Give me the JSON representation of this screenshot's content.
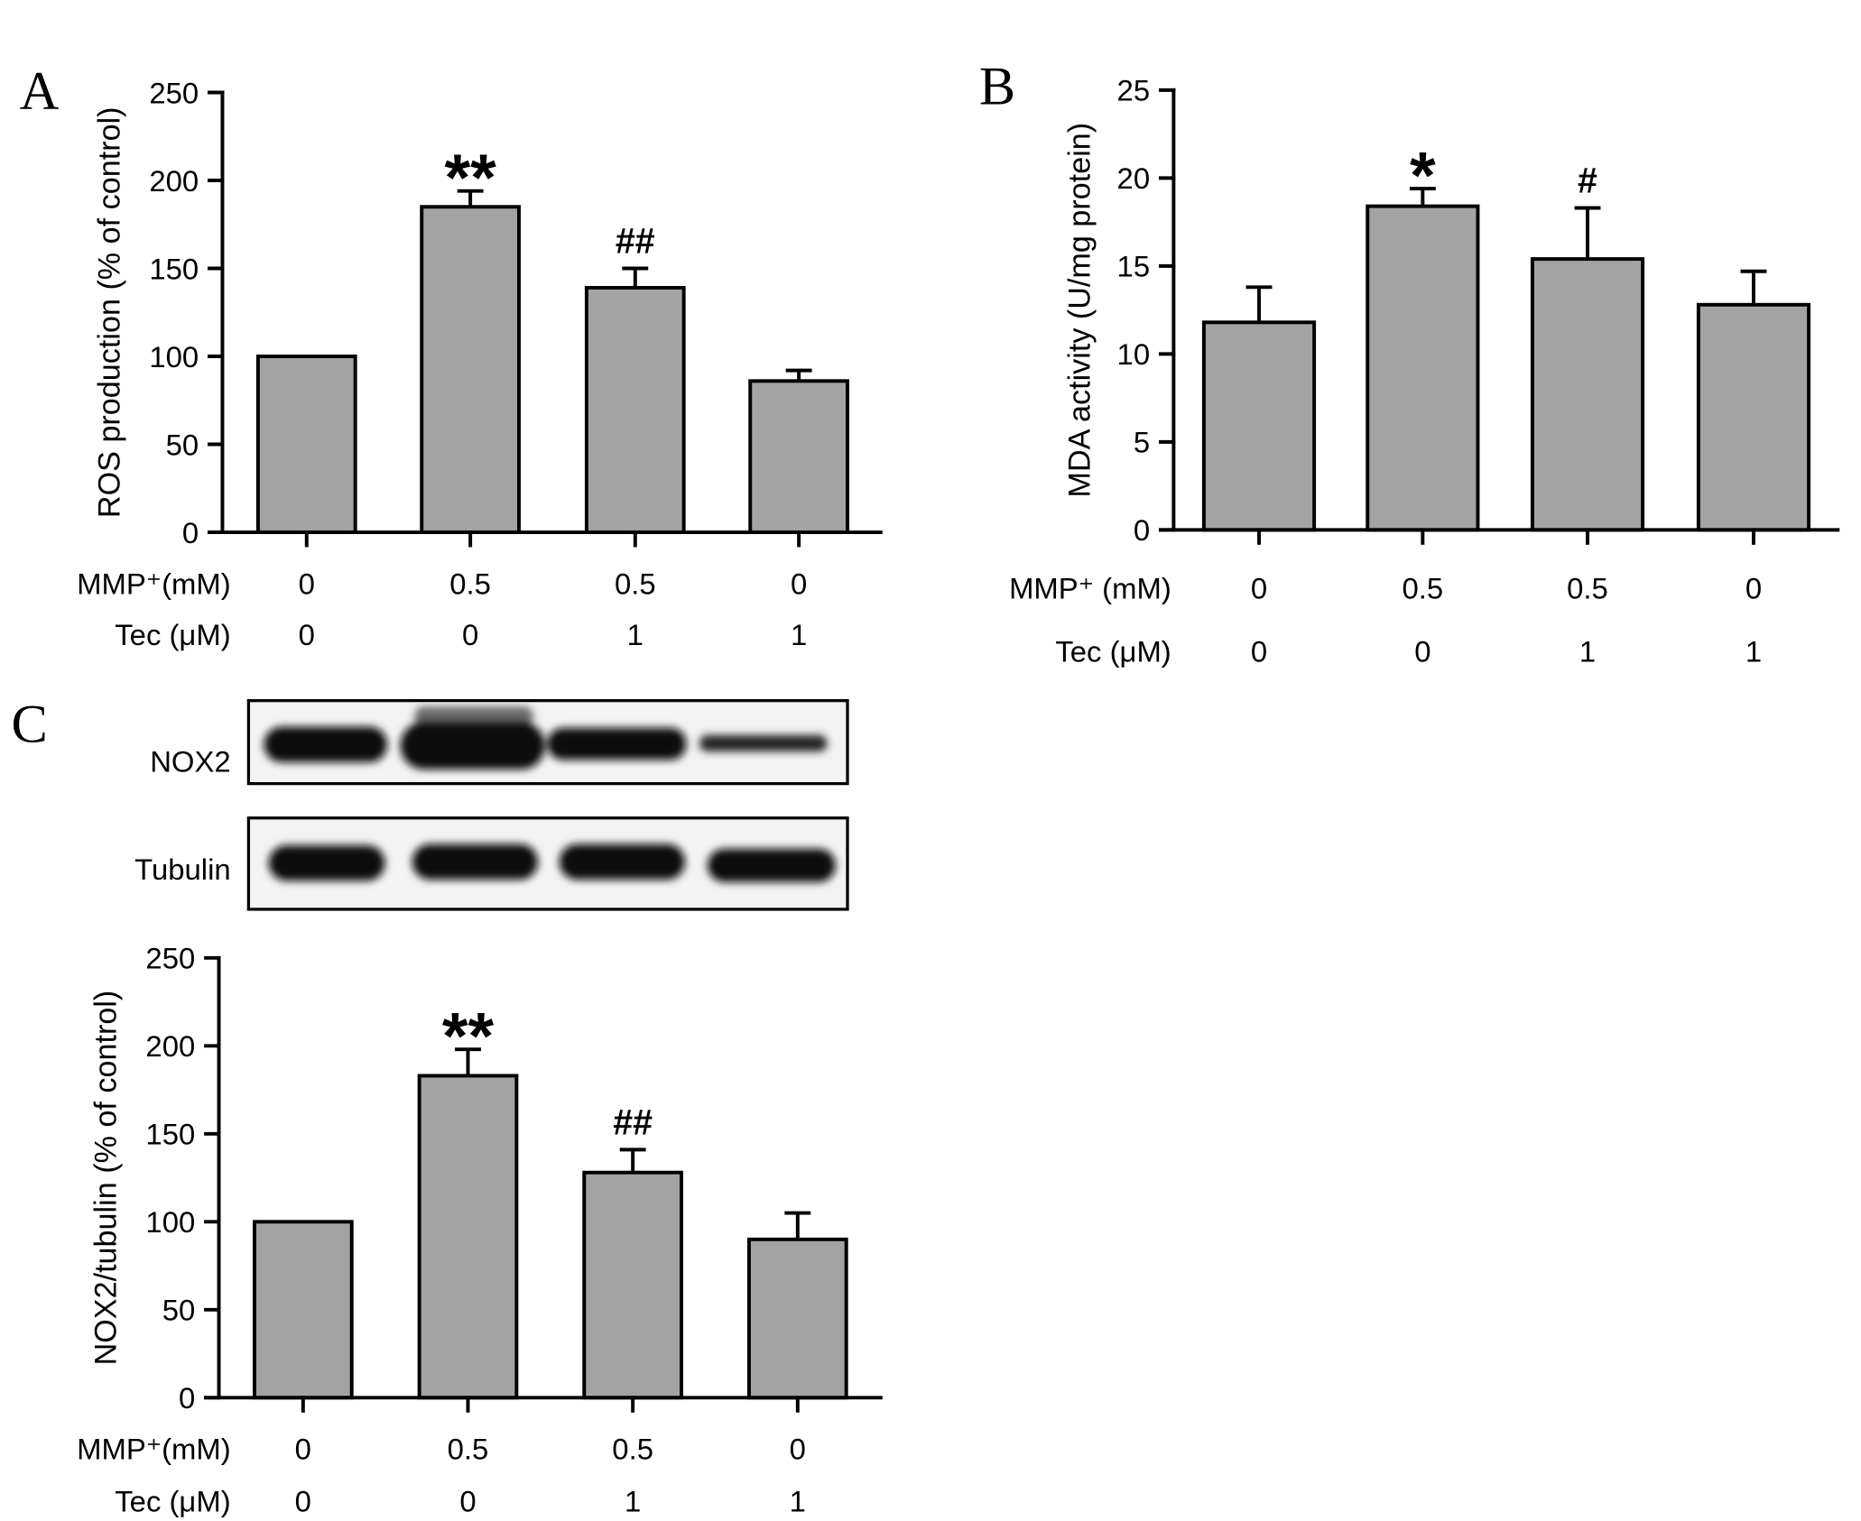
{
  "chart_data": [
    {
      "type": "bar",
      "panel_label": "A",
      "ylabel": "ROS production (% of control)",
      "ylim": [
        0,
        250
      ],
      "yticks": [
        0,
        50,
        100,
        150,
        200,
        250
      ],
      "values": [
        100,
        185,
        139,
        86
      ],
      "errors": [
        0,
        9,
        11,
        6
      ],
      "annotations": [
        null,
        "**",
        "##",
        null
      ],
      "conditions": [
        {
          "label": "MMP⁺(mM)",
          "values": [
            "0",
            "0.5",
            "0.5",
            "0"
          ]
        },
        {
          "label": "Tec (μM)",
          "values": [
            "0",
            "0",
            "1",
            "1"
          ]
        }
      ],
      "bar_color": "#a3a3a3"
    },
    {
      "type": "bar",
      "panel_label": "B",
      "ylabel": "MDA activity (U/mg protein)",
      "ylim": [
        0,
        25
      ],
      "yticks": [
        0,
        5,
        10,
        15,
        20,
        25
      ],
      "values": [
        11.8,
        18.4,
        15.4,
        12.8
      ],
      "errors": [
        2.0,
        1.0,
        2.9,
        1.9
      ],
      "annotations": [
        null,
        "*",
        "#",
        null
      ],
      "conditions": [
        {
          "label": "MMP⁺ (mM)",
          "values": [
            "0",
            "0.5",
            "0.5",
            "0"
          ]
        },
        {
          "label": "Tec (μM)",
          "values": [
            "0",
            "0",
            "1",
            "1"
          ]
        }
      ],
      "bar_color": "#a3a3a3"
    },
    {
      "type": "bar",
      "panel_label": "C",
      "ylabel": "NOX2/tubulin (% of control)",
      "ylim": [
        0,
        250
      ],
      "yticks": [
        0,
        50,
        100,
        150,
        200,
        250
      ],
      "values": [
        100,
        183,
        128,
        90
      ],
      "errors": [
        0,
        15,
        13,
        15
      ],
      "annotations": [
        null,
        "**",
        "##",
        null
      ],
      "conditions": [
        {
          "label": "MMP⁺(mM)",
          "values": [
            "0",
            "0.5",
            "0.5",
            "0"
          ]
        },
        {
          "label": "Tec (μM)",
          "values": [
            "0",
            "0",
            "1",
            "1"
          ]
        }
      ],
      "bar_color": "#a3a3a3"
    }
  ],
  "western_blot": {
    "rows": [
      {
        "label": "NOX2"
      },
      {
        "label": "Tubulin"
      }
    ]
  }
}
